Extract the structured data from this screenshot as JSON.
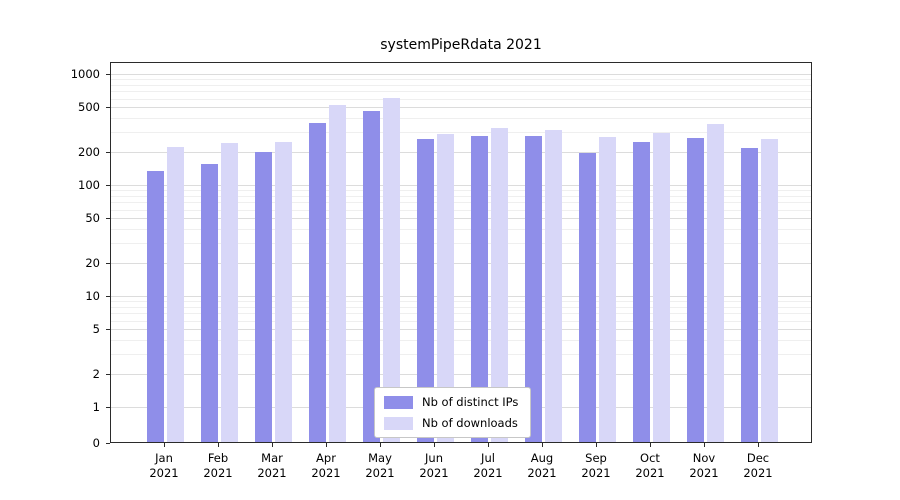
{
  "chart_data": {
    "type": "bar",
    "title": "systemPipeRdata 2021",
    "xlabel": "",
    "ylabel": "",
    "scale": "symlog",
    "grid": true,
    "legend_position": "lower center",
    "year": "2021",
    "categories": [
      "Jan",
      "Feb",
      "Mar",
      "Apr",
      "May",
      "Jun",
      "Jul",
      "Aug",
      "Sep",
      "Oct",
      "Nov",
      "Dec"
    ],
    "yticks": [
      0,
      1,
      2,
      5,
      10,
      20,
      50,
      100,
      200,
      500,
      1000
    ],
    "ylim": [
      0,
      1000
    ],
    "series": [
      {
        "name": "Nb of distinct IPs",
        "color": "#8f8ee9",
        "values": [
          130,
          152,
          196,
          355,
          455,
          255,
          270,
          270,
          190,
          238,
          258,
          210
        ]
      },
      {
        "name": "Nb of downloads",
        "color": "#d8d7f8",
        "values": [
          215,
          232,
          238,
          520,
          600,
          285,
          318,
          308,
          265,
          288,
          345,
          252
        ]
      }
    ]
  }
}
